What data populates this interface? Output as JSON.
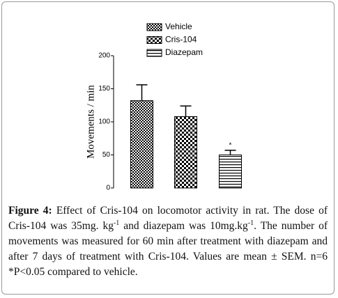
{
  "chart_data": {
    "type": "bar",
    "y_label": "Movements / min",
    "ylim": [
      0,
      200
    ],
    "yticks": [
      0,
      50,
      100,
      150,
      200
    ],
    "series": [
      {
        "name": "Vehicle",
        "color": "#000000",
        "pattern": "fine-checker",
        "values": [
          132
        ],
        "errors": [
          24
        ]
      },
      {
        "name": "Cris-104",
        "color": "#000000",
        "pattern": "checker",
        "values": [
          108
        ],
        "errors": [
          16
        ]
      },
      {
        "name": "Diazepam",
        "color": "#000000",
        "pattern": "horizontal-lines",
        "values": [
          50
        ],
        "errors": [
          7
        ]
      }
    ],
    "annotations": [
      {
        "text": "*",
        "series": 2
      }
    ],
    "legend": "top"
  },
  "caption": {
    "label": "Figure 4:",
    "parts": [
      "Effect of Cris-104 on locomotor activity in rat. The dose of Cris-104 was 35mg. kg",
      "-1",
      "and diazepam was 10mg.kg",
      "-1",
      ". The number of movements was measured for 60 min after treatment with diazepam and after 7 days of treatment with Cris-104. Values are mean ± SEM. n=6 *P<0.05 compared to vehicle."
    ]
  }
}
